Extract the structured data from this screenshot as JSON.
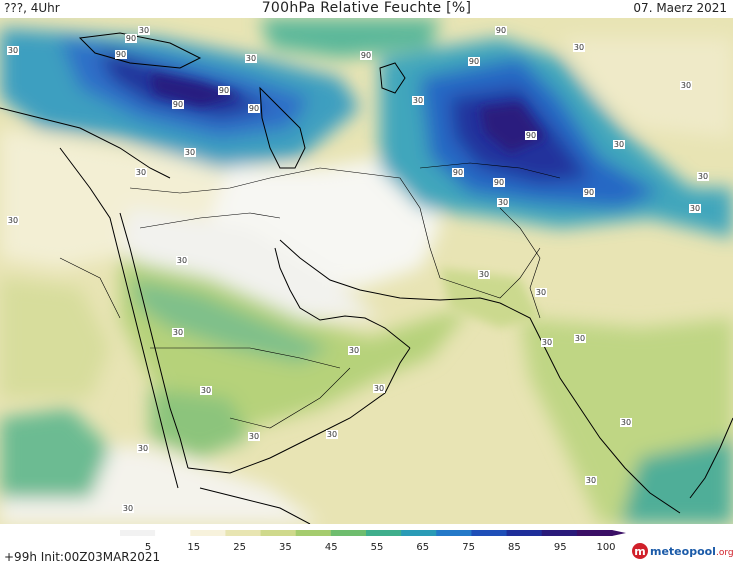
{
  "header": {
    "left": "???, 4Uhr",
    "title": "700hPa Relative Feuchte [%]",
    "date": "07. Maerz 2021"
  },
  "footer": {
    "run": "+99h Init:00Z03MAR2021",
    "logo_main": "meteopool",
    "logo_suffix": ".org"
  },
  "legend": {
    "ticks": [
      "5",
      "15",
      "25",
      "35",
      "45",
      "55",
      "65",
      "75",
      "85",
      "95",
      "100"
    ],
    "colors": [
      "#f2f2f2",
      "#ffffff",
      "#f7f2dc",
      "#e8e5b2",
      "#cfd98c",
      "#a5cc6e",
      "#6fbd6e",
      "#3fae8c",
      "#2a9bb6",
      "#2479c8",
      "#1f4fb8",
      "#1f2f9a",
      "#2a1a7a",
      "#3b0f66"
    ]
  },
  "map": {
    "variable": "700hPa Relative Feuchte",
    "unit": "%",
    "contour_labels": [
      "30",
      "90"
    ]
  },
  "colors": {
    "ocean": "#e6e3b0",
    "coast": "#000000"
  }
}
